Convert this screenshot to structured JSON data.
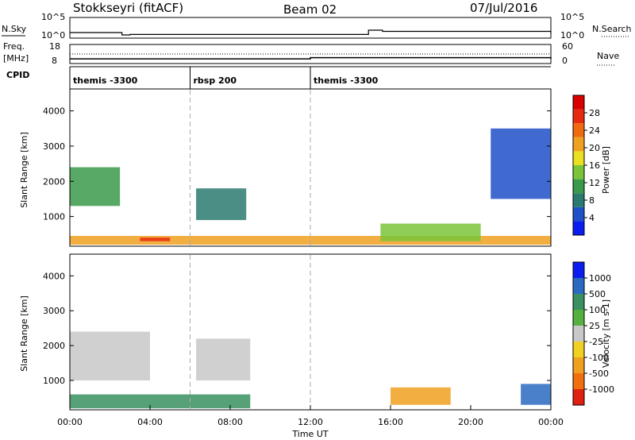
{
  "header": {
    "station": "Stokkseyri (fitACF)",
    "beam": "Beam 02",
    "date": "07/Jul/2016"
  },
  "strip_labels": {
    "nsky": "N.Sky",
    "nsky_top": "10^5",
    "nsky_bot": "10^0",
    "nsearch": "N.Search",
    "nsearch_top": "10^5",
    "nsearch_bot": "10^0",
    "freq_line1": "Freq.",
    "freq_line2": "[MHz]",
    "freq_top": "18",
    "freq_bot": "8",
    "nave": "Nave",
    "nave_top": "60",
    "nave_bot": "0",
    "cpid": "CPID"
  },
  "cpid_segments": [
    {
      "label": "themis -3300",
      "start_h": 0
    },
    {
      "label": "rbsp 200",
      "start_h": 6
    },
    {
      "label": "themis -3300",
      "start_h": 12
    }
  ],
  "axes": {
    "x_title": "Time UT",
    "x_ticks": [
      "00:00",
      "04:00",
      "08:00",
      "12:00",
      "16:00",
      "20:00",
      "00:00"
    ],
    "y_title": "Slant Range [km]",
    "y_ticks": [
      "1000",
      "2000",
      "3000",
      "4000"
    ]
  },
  "power_colorbar": {
    "title": "Power [dB]",
    "ticks": [
      "4",
      "8",
      "12",
      "16",
      "20",
      "24",
      "28"
    ],
    "colors": [
      "#0a1ef0",
      "#1e50c8",
      "#2a7a70",
      "#3a9a4a",
      "#7ac43a",
      "#e8e020",
      "#f0a020",
      "#f06a10",
      "#e82a10",
      "#d80000"
    ]
  },
  "velocity_colorbar": {
    "title": "Velocity [m s-1]",
    "ticks": [
      "1000",
      "500",
      "100",
      "25",
      "-25",
      "-100",
      "-500",
      "-1000"
    ],
    "colors": [
      "#0a1ef0",
      "#2a6ac0",
      "#3a9060",
      "#56b040",
      "#c8c8c8",
      "#f0d020",
      "#f0a020",
      "#f07010",
      "#e02010"
    ]
  },
  "chart_data": [
    {
      "type": "line",
      "title": "Stokkseyri (fitACF) Beam 02 07/Jul/2016",
      "series": [
        {
          "name": "N.Sky",
          "x_hours": [
            0,
            2.6,
            3,
            14.9,
            15.6,
            24
          ],
          "values": [
            20,
            10,
            12,
            30,
            25,
            15
          ]
        },
        {
          "name": "Freq.",
          "x_hours": [
            0,
            8.8,
            12,
            19,
            24
          ],
          "values": [
            10.2,
            10.2,
            10.9,
            10.9,
            10.2
          ]
        },
        {
          "name": "Nave",
          "x_hours": [
            0,
            24
          ],
          "values": [
            30,
            30
          ]
        }
      ]
    },
    {
      "type": "heatmap",
      "ylabel": "Slant Range [km]",
      "xlabel": "Time UT",
      "xlim_hours": [
        0,
        24
      ],
      "ylim_km": [
        180,
        4600
      ],
      "colorbar": "Power [dB]",
      "regions": [
        {
          "t": [
            0,
            24
          ],
          "r": [
            200,
            450
          ],
          "value": 20
        },
        {
          "t": [
            0,
            2.5
          ],
          "r": [
            1300,
            2400
          ],
          "value": 10
        },
        {
          "t": [
            6.3,
            8.8
          ],
          "r": [
            900,
            1800
          ],
          "value": 6
        },
        {
          "t": [
            15.5,
            20.5
          ],
          "r": [
            300,
            800
          ],
          "value": 14
        },
        {
          "t": [
            3.5,
            5
          ],
          "r": [
            300,
            400
          ],
          "value": 26
        },
        {
          "t": [
            21,
            24
          ],
          "r": [
            1500,
            3500
          ],
          "value": 4
        }
      ]
    },
    {
      "type": "heatmap",
      "ylabel": "Slant Range [km]",
      "xlabel": "Time UT",
      "xlim_hours": [
        0,
        24
      ],
      "ylim_km": [
        180,
        4600
      ],
      "colorbar": "Velocity [m s-1]",
      "regions": [
        {
          "t": [
            0,
            9
          ],
          "r": [
            200,
            600
          ],
          "value": 150
        },
        {
          "t": [
            0,
            4
          ],
          "r": [
            1000,
            2400
          ],
          "value": 0
        },
        {
          "t": [
            6.3,
            9
          ],
          "r": [
            1000,
            2200
          ],
          "value": 0
        },
        {
          "t": [
            16,
            19
          ],
          "r": [
            300,
            800
          ],
          "value": -150
        },
        {
          "t": [
            22.5,
            24
          ],
          "r": [
            300,
            900
          ],
          "value": 500
        }
      ]
    }
  ]
}
